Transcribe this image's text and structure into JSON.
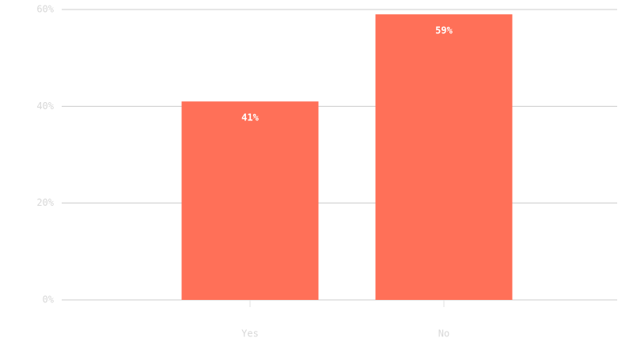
{
  "chart_data": {
    "type": "bar",
    "categories": [
      "Yes",
      "No"
    ],
    "values": [
      41,
      59
    ],
    "value_labels": [
      "41%",
      "59%"
    ],
    "color": "#ff7058",
    "ylim": [
      0,
      60
    ],
    "yticks": [
      {
        "value": 0,
        "label": "0%"
      },
      {
        "value": 20,
        "label": "20%"
      },
      {
        "value": 40,
        "label": "40%"
      },
      {
        "value": 60,
        "label": "60%"
      }
    ],
    "grid": true
  }
}
